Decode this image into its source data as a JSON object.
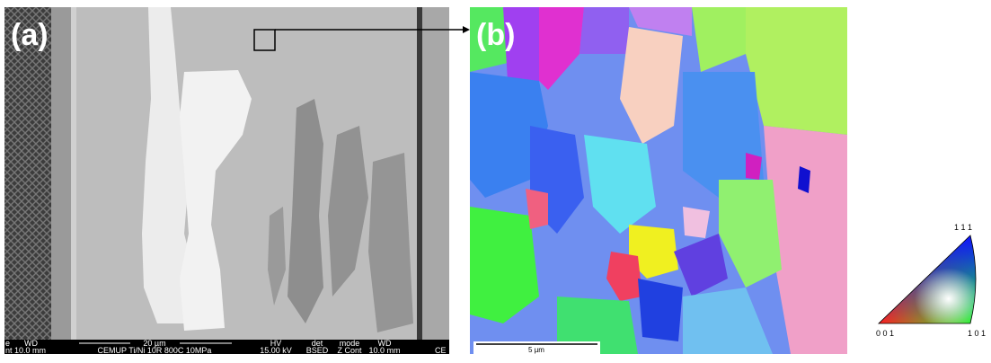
{
  "panel_a": {
    "label": "(a)",
    "info_bar": {
      "fields": [
        {
          "header": "e",
          "value": "nt"
        },
        {
          "header": "WD",
          "value": "10.0 mm"
        }
      ],
      "scale": "20 µm",
      "description": "CEMUP  Ti/Ni 10R 800C 10MPa",
      "fields_right": [
        {
          "header": "HV",
          "value": "15.00 kV"
        },
        {
          "header": "det",
          "value": "BSED"
        },
        {
          "header": "mode",
          "value": "Z Cont"
        },
        {
          "header": "WD",
          "value": "10.0 mm"
        }
      ],
      "cut_label": "CE"
    }
  },
  "panel_b": {
    "label": "(b)",
    "scale_bar": "5 µm"
  },
  "legend": {
    "top": "1 1 1",
    "left": "0 0 1",
    "right": "1 0 1"
  }
}
